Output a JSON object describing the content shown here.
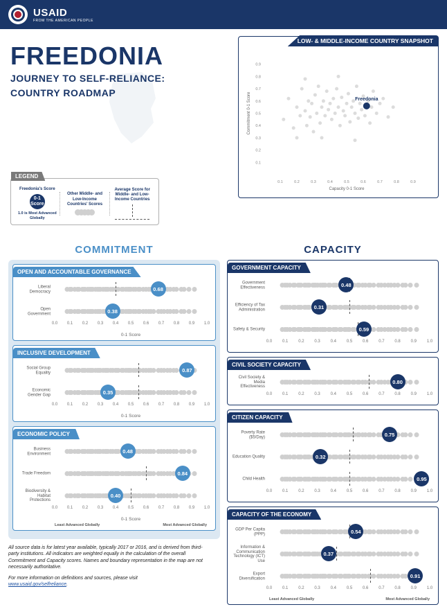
{
  "header": {
    "org": "USAID",
    "tagline": "FROM THE AMERICAN PEOPLE"
  },
  "title": "FREEDONIA",
  "subtitle1": "JOURNEY TO SELF-RELIANCE:",
  "subtitle2": "COUNTRY ROADMAP",
  "legend": {
    "tab": "LEGEND",
    "col1_t": "Freedonia's Score",
    "col1_bubble": "0-1 Score",
    "col1_note": "1.0 is Most Advanced Globally",
    "col2_t": "Other Middle- and Low-Income Countries' Scores",
    "col3_t": "Average Score for Middle- and Low-Income Countries"
  },
  "snapshot": {
    "tab": "LOW- & MIDDLE-INCOME COUNTRY SNAPSHOT",
    "point_label": "Freedonia",
    "fx": 0.62,
    "fy": 0.56,
    "xlabel": "Capacity 0-1 Score",
    "ylabel": "Commitment 0-1 Score",
    "ticks": [
      0.1,
      0.2,
      0.3,
      0.4,
      0.5,
      0.6,
      0.7,
      0.8,
      0.9
    ],
    "bg": [
      [
        0.12,
        0.45
      ],
      [
        0.15,
        0.62
      ],
      [
        0.18,
        0.38
      ],
      [
        0.2,
        0.55
      ],
      [
        0.22,
        0.48
      ],
      [
        0.23,
        0.7
      ],
      [
        0.25,
        0.52
      ],
      [
        0.26,
        0.4
      ],
      [
        0.27,
        0.6
      ],
      [
        0.28,
        0.47
      ],
      [
        0.29,
        0.58
      ],
      [
        0.3,
        0.35
      ],
      [
        0.31,
        0.65
      ],
      [
        0.32,
        0.5
      ],
      [
        0.33,
        0.72
      ],
      [
        0.34,
        0.42
      ],
      [
        0.35,
        0.55
      ],
      [
        0.36,
        0.6
      ],
      [
        0.37,
        0.48
      ],
      [
        0.38,
        0.68
      ],
      [
        0.39,
        0.53
      ],
      [
        0.4,
        0.58
      ],
      [
        0.41,
        0.45
      ],
      [
        0.42,
        0.62
      ],
      [
        0.43,
        0.5
      ],
      [
        0.44,
        0.7
      ],
      [
        0.45,
        0.55
      ],
      [
        0.46,
        0.4
      ],
      [
        0.47,
        0.63
      ],
      [
        0.48,
        0.52
      ],
      [
        0.49,
        0.48
      ],
      [
        0.5,
        0.58
      ],
      [
        0.51,
        0.66
      ],
      [
        0.52,
        0.43
      ],
      [
        0.53,
        0.55
      ],
      [
        0.54,
        0.6
      ],
      [
        0.55,
        0.5
      ],
      [
        0.56,
        0.72
      ],
      [
        0.57,
        0.46
      ],
      [
        0.58,
        0.58
      ],
      [
        0.59,
        0.53
      ],
      [
        0.6,
        0.64
      ],
      [
        0.61,
        0.48
      ],
      [
        0.63,
        0.6
      ],
      [
        0.64,
        0.42
      ],
      [
        0.65,
        0.55
      ],
      [
        0.66,
        0.68
      ],
      [
        0.68,
        0.5
      ],
      [
        0.7,
        0.58
      ],
      [
        0.72,
        0.62
      ],
      [
        0.75,
        0.47
      ],
      [
        0.78,
        0.55
      ],
      [
        0.2,
        0.3
      ],
      [
        0.25,
        0.78
      ],
      [
        0.35,
        0.3
      ],
      [
        0.45,
        0.8
      ],
      [
        0.55,
        0.28
      ]
    ]
  },
  "col_commitment": "COMMITMENT",
  "col_capacity": "CAPACITY",
  "x_ticks": [
    "0.0",
    "0.1",
    "0.2",
    "0.3",
    "0.4",
    "0.5",
    "0.6",
    "0.7",
    "0.8",
    "0.9",
    "1.0"
  ],
  "axis_label": "0-1 Score",
  "least": "Least Advanced Globally",
  "most": "Most Advanced Globally",
  "commitment_panels": [
    {
      "tab": "OPEN AND ACCOUNTABLE GOVERNANCE",
      "show_axis_label": true,
      "strips": [
        {
          "label": "Liberal Democracy",
          "avg": 0.4,
          "val": 0.68
        },
        {
          "label": "Open Government",
          "avg": 0.4,
          "val": 0.38
        }
      ]
    },
    {
      "tab": "INCLUSIVE DEVELOPMENT",
      "show_axis_label": true,
      "strips": [
        {
          "label": "Social Group Equality",
          "avg": 0.55,
          "val": 0.87
        },
        {
          "label": "Economic Gender Gap",
          "avg": 0.55,
          "val": 0.35
        }
      ]
    },
    {
      "tab": "ECONOMIC POLICY",
      "show_axis_label": true,
      "show_scale": true,
      "strips": [
        {
          "label": "Business Environment",
          "avg": 0.48,
          "val": 0.48
        },
        {
          "label": "Trade Freedom",
          "avg": 0.6,
          "val": 0.84
        },
        {
          "label": "Biodiversity & Habitat Protections",
          "avg": 0.5,
          "val": 0.4
        }
      ]
    }
  ],
  "capacity_panels": [
    {
      "tab": "GOVERNMENT CAPACITY",
      "strips": [
        {
          "label": "Government Effectiveness",
          "avg": 0.5,
          "val": 0.48
        },
        {
          "label": "Efficiency of Tax Administration",
          "avg": 0.5,
          "val": 0.31
        },
        {
          "label": "Safety & Security",
          "avg": 0.55,
          "val": 0.59
        }
      ]
    },
    {
      "tab": "CIVIL SOCIETY CAPACITY",
      "strips": [
        {
          "label": "Civil Society & Media Effectiveness",
          "avg": 0.62,
          "val": 0.8
        }
      ]
    },
    {
      "tab": "CITIZEN CAPACITY",
      "strips": [
        {
          "label": "Poverty Rate ($5/Day)",
          "avg": 0.52,
          "val": 0.75
        },
        {
          "label": "Education Quality",
          "avg": 0.5,
          "val": 0.32
        },
        {
          "label": "Child Health",
          "avg": 0.5,
          "val": 0.95
        }
      ]
    },
    {
      "tab": "CAPACITY OF THE ECONOMY",
      "show_scale": true,
      "strips": [
        {
          "label": "GDP Per Capita (PPP)",
          "avg": 0.5,
          "val": 0.54
        },
        {
          "label": "Information & Communication Technology (ICT) Use",
          "avg": 0.42,
          "val": 0.37
        },
        {
          "label": "Export Diversification",
          "avg": 0.63,
          "val": 0.91
        }
      ]
    }
  ],
  "bg_dots": [
    0.08,
    0.1,
    0.11,
    0.13,
    0.15,
    0.16,
    0.18,
    0.19,
    0.2,
    0.22,
    0.23,
    0.24,
    0.25,
    0.27,
    0.28,
    0.29,
    0.3,
    0.32,
    0.33,
    0.34,
    0.35,
    0.37,
    0.38,
    0.4,
    0.41,
    0.42,
    0.44,
    0.45,
    0.47,
    0.48,
    0.49,
    0.5,
    0.52,
    0.53,
    0.55,
    0.56,
    0.58,
    0.6,
    0.62,
    0.63,
    0.65,
    0.68,
    0.7,
    0.72,
    0.74,
    0.76,
    0.78,
    0.8,
    0.83,
    0.85,
    0.88,
    0.92
  ],
  "foot1": "All source data is for latest year available, typically 2017 or 2016, and is derived from third-party institutions. All indicators are weighted equally in the calculation of the overall Commitment and Capacity scores. Names and boundary representation in the map are not necessarily authoritative.",
  "foot2": "For more information on definitions and sources, please visit",
  "foot_link": "www.usaid.gov/selfreliance",
  "colors": {
    "navy": "#1a3668",
    "blue": "#4a8fc7",
    "gray": "#cfcfcf"
  }
}
